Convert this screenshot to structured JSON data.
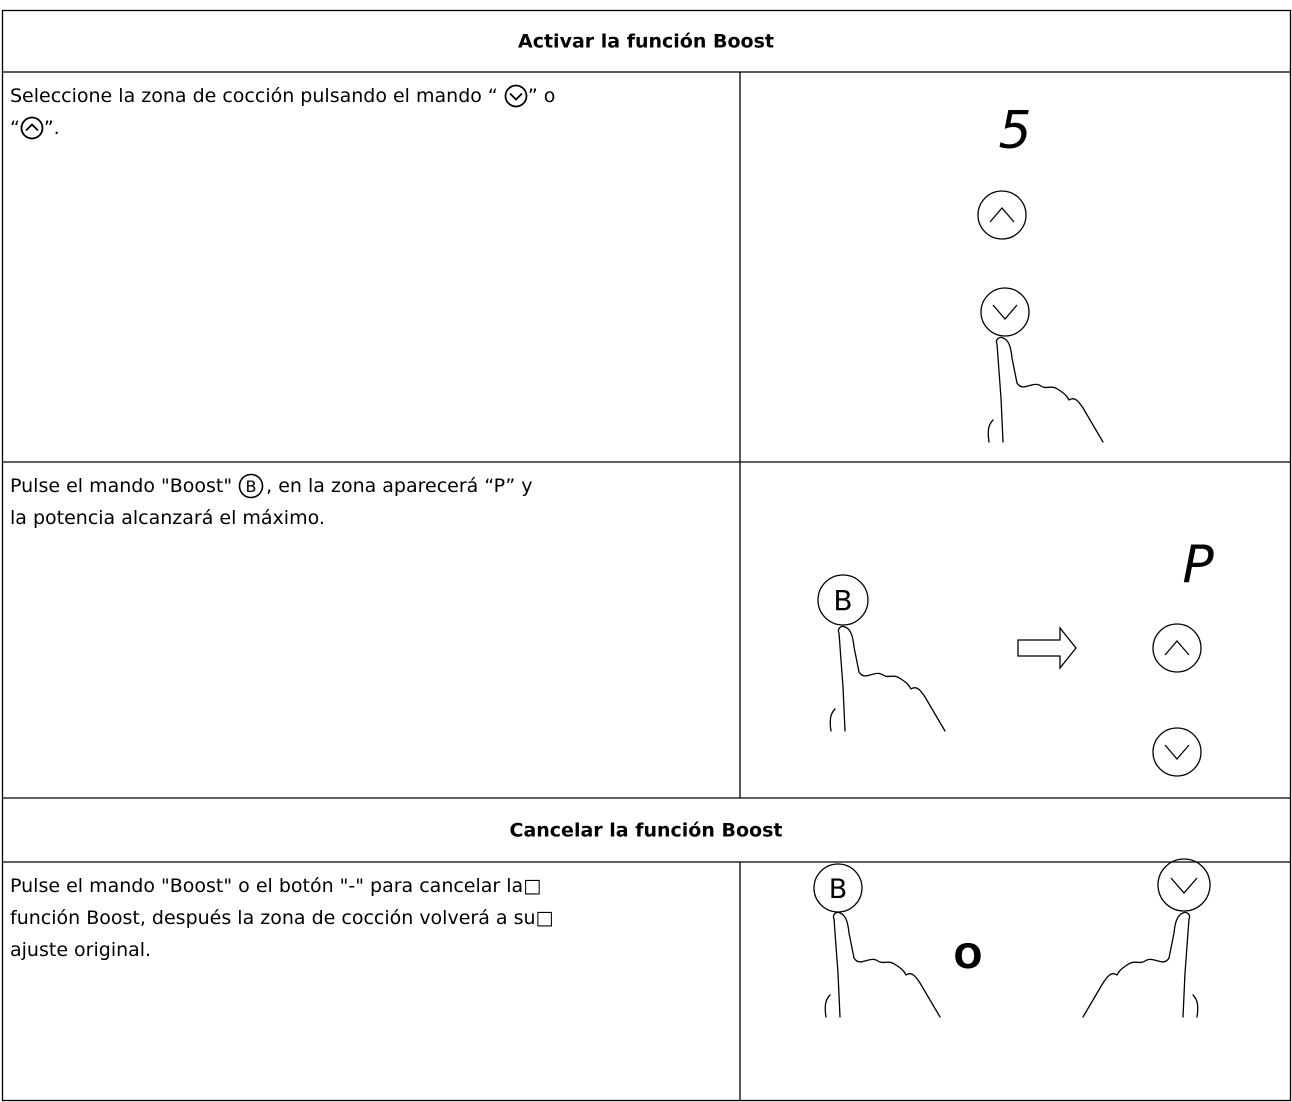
{
  "sections": [
    {
      "title": "Activar la función Boost",
      "steps": [
        {
          "text": [
            "Seleccione la zona de cocción pulsando el mando “ ",
            "” o",
            "“",
            "”."
          ],
          "display": "5"
        },
        {
          "text": [
            "Pulse el mando \"Boost\" ",
            ", en la zona aparecerá “P” y",
            "la potencia alcanzará el máximo."
          ],
          "button": "B",
          "display": "P"
        }
      ]
    },
    {
      "title": "Cancelar la función Boost",
      "steps": [
        {
          "text": [
            "Pulse el mando \"Boost\" o el botón \"-\" para cancelar la□",
            "función Boost, después la zona de cocción volverá a su□",
            "ajuste original."
          ],
          "button": "B",
          "separator": "O"
        }
      ]
    }
  ]
}
